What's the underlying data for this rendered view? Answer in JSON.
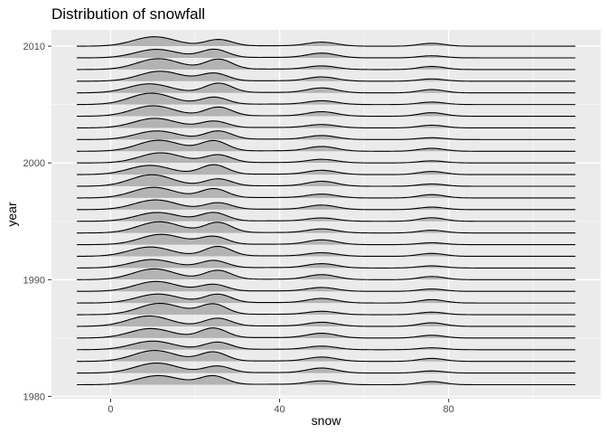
{
  "chart_data": {
    "type": "ridgeline",
    "title": "Distribution of snowfall",
    "xlabel": "snow",
    "ylabel": "year",
    "xlim": [
      -14,
      116
    ],
    "ylim": [
      1979.8,
      2011.4
    ],
    "x_ticks": [
      0,
      40,
      80
    ],
    "y_ticks": [
      1980,
      1990,
      2000,
      2010
    ],
    "years": [
      1981,
      1982,
      1983,
      1984,
      1985,
      1986,
      1987,
      1988,
      1989,
      1990,
      1991,
      1992,
      1993,
      1994,
      1995,
      1996,
      1997,
      1998,
      1999,
      2000,
      2001,
      2002,
      2003,
      2004,
      2005,
      2006,
      2007,
      2008,
      2009,
      2010
    ],
    "density_range": [
      -8,
      110
    ],
    "fill_color": "#b3b3b3",
    "line_color": "#000000",
    "panel_color": "#ebebeb",
    "grid": true,
    "legend": "none"
  }
}
